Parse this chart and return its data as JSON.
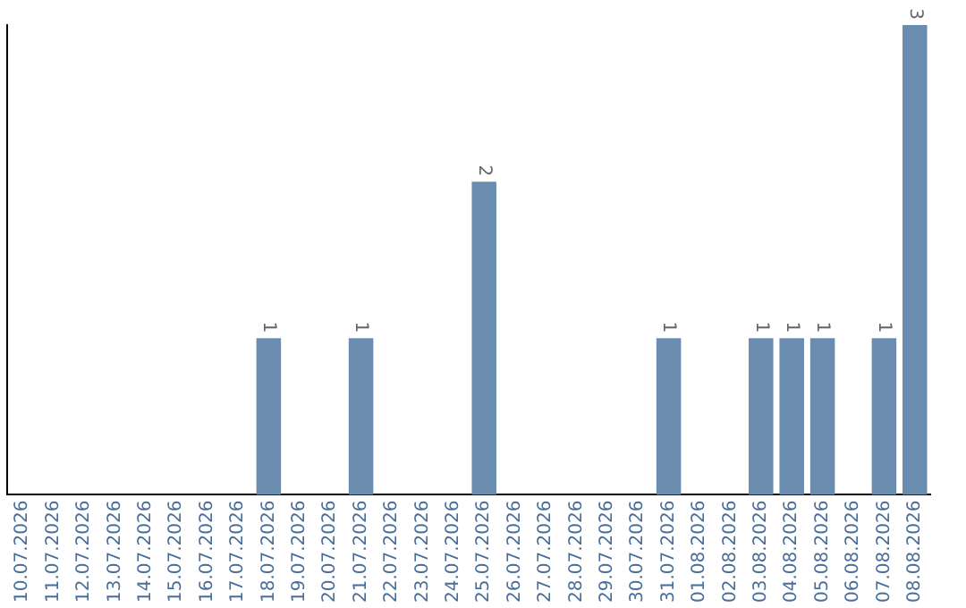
{
  "chart_data": {
    "type": "bar",
    "categories": [
      "10.07.2026",
      "11.07.2026",
      "12.07.2026",
      "13.07.2026",
      "14.07.2026",
      "15.07.2026",
      "16.07.2026",
      "17.07.2026",
      "18.07.2026",
      "19.07.2026",
      "20.07.2026",
      "21.07.2026",
      "22.07.2026",
      "23.07.2026",
      "24.07.2026",
      "25.07.2026",
      "26.07.2026",
      "27.07.2026",
      "28.07.2026",
      "29.07.2026",
      "30.07.2026",
      "31.07.2026",
      "01.08.2026",
      "02.08.2026",
      "03.08.2026",
      "04.08.2026",
      "05.08.2026",
      "06.08.2026",
      "07.08.2026",
      "08.08.2026"
    ],
    "values": [
      0,
      0,
      0,
      0,
      0,
      0,
      0,
      0,
      1,
      0,
      0,
      1,
      0,
      0,
      0,
      2,
      0,
      0,
      0,
      0,
      0,
      1,
      0,
      0,
      1,
      1,
      1,
      0,
      1,
      3
    ],
    "value_labels": [
      null,
      null,
      null,
      null,
      null,
      null,
      null,
      null,
      "1",
      null,
      null,
      "1",
      null,
      null,
      null,
      "2",
      null,
      null,
      null,
      null,
      null,
      "1",
      null,
      null,
      "1",
      "1",
      "1",
      null,
      "1",
      "3"
    ],
    "color": "#6a8caf",
    "grid": false,
    "legend": false,
    "tick_labels": "x"
  }
}
